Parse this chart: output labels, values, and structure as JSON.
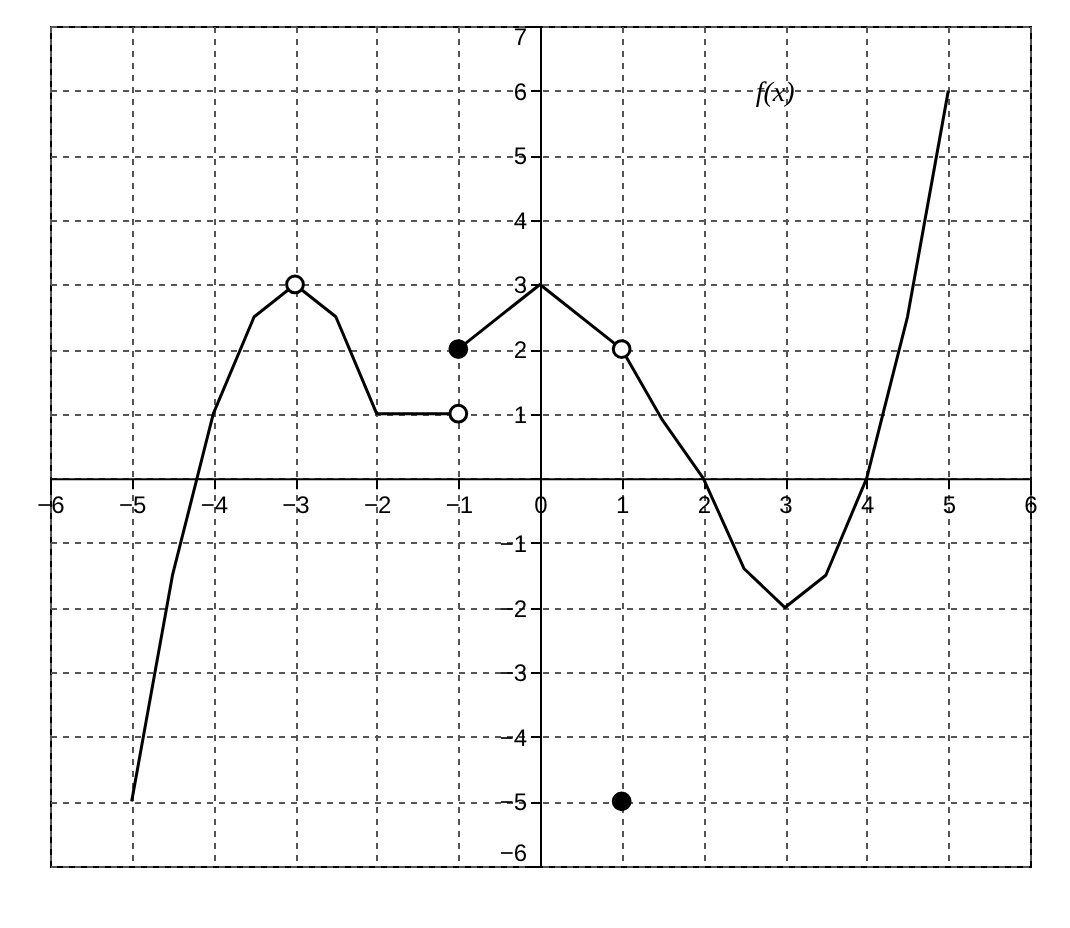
{
  "chart_data": {
    "type": "line",
    "annotations": [
      "f(x)"
    ],
    "series": [
      {
        "type": "line",
        "color": "#000000",
        "x": [
          -5,
          -4.5,
          -4,
          -3.5,
          -3,
          -2.5,
          -2,
          -1.5,
          -1
        ],
        "values": [
          -5,
          -1.5,
          1,
          2.5,
          3,
          2.5,
          1,
          1,
          1
        ]
      },
      {
        "type": "line",
        "color": "#000000",
        "x": [
          -1,
          0,
          1,
          1.5,
          2,
          2.5,
          3,
          3.5,
          4,
          4.5,
          5
        ],
        "values": [
          2,
          3,
          2,
          0.9,
          0,
          -1.4,
          -2,
          -1.5,
          0,
          2.5,
          6
        ]
      },
      {
        "type": "scatter",
        "color": "#ffffff",
        "x": [
          -3,
          -1,
          1
        ],
        "values": [
          3,
          1,
          2
        ]
      },
      {
        "type": "scatter",
        "color": "#000000",
        "x": [
          -1,
          1
        ],
        "values": [
          2,
          -5
        ]
      }
    ],
    "grid": true,
    "xlim": [
      -6,
      6
    ],
    "xticks": [
      -6,
      -5,
      -4,
      -3,
      -2,
      -1,
      0,
      1,
      2,
      3,
      4,
      5,
      6
    ],
    "ylim": [
      -6,
      7
    ],
    "yticks": [
      -6,
      -5,
      -4,
      -3,
      -2,
      -1,
      {
        "value": 0,
        "label": null
      },
      1,
      2,
      3,
      4,
      5,
      6,
      7
    ]
  }
}
